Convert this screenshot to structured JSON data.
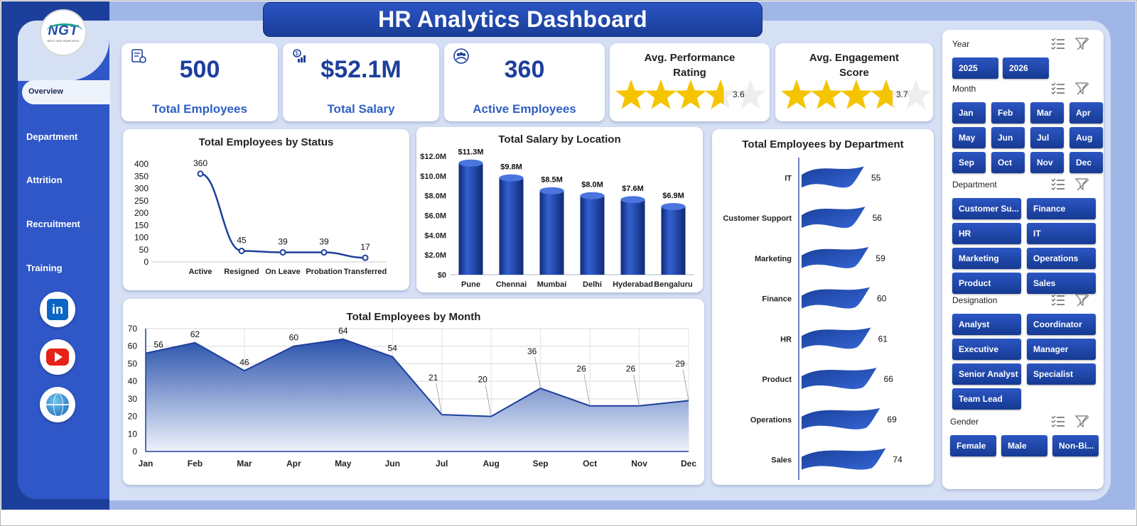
{
  "header": {
    "title": "HR Analytics Dashboard"
  },
  "logo": {
    "text": "NGT",
    "subtext": "NEXT GEN TEMPLATES"
  },
  "sidebar": {
    "items": [
      {
        "label": "Overview",
        "active": true
      },
      {
        "label": "Department"
      },
      {
        "label": "Attrition"
      },
      {
        "label": "Recruitment"
      },
      {
        "label": "Training"
      }
    ],
    "social": [
      {
        "icon": "linkedin-icon",
        "glyph": "in"
      },
      {
        "icon": "youtube-icon"
      },
      {
        "icon": "globe-icon"
      }
    ]
  },
  "kpis": [
    {
      "value": "500",
      "label": "Total Employees",
      "icon": "employees-icon"
    },
    {
      "value": "$52.1M",
      "label": "Total Salary",
      "icon": "salary-icon"
    },
    {
      "value": "360",
      "label": "Active Employees",
      "icon": "active-icon"
    }
  ],
  "ratings": [
    {
      "title": "Avg. Performance Rating",
      "value": "3.6",
      "stars": 3.6,
      "max": 5
    },
    {
      "title": "Avg. Engagement Score",
      "value": "3.7",
      "stars": 3.7,
      "max": 5
    }
  ],
  "colors": {
    "primary": "#1d3f9c",
    "accent": "#2f57c7",
    "star": "#f5c400",
    "star_empty": "#eeeeee",
    "panel": "#d6e0f5"
  },
  "chart_data": [
    {
      "type": "line",
      "title": "Total Employees by Status",
      "categories": [
        "Active",
        "Resigned",
        "On Leave",
        "Probation",
        "Transferred"
      ],
      "values": [
        360,
        45,
        39,
        39,
        17
      ],
      "ylim": [
        0,
        400
      ],
      "yticks": [
        "0",
        "50",
        "100",
        "150",
        "200",
        "250",
        "300",
        "350",
        "400"
      ]
    },
    {
      "type": "bar",
      "title": "Total Salary by Location",
      "categories": [
        "Pune",
        "Chennai",
        "Mumbai",
        "Delhi",
        "Hyderabad",
        "Bengaluru"
      ],
      "values": [
        11.3,
        9.8,
        8.5,
        8.0,
        7.6,
        6.9
      ],
      "data_labels": [
        "$11.3M",
        "$9.8M",
        "$8.5M",
        "$8.0M",
        "$7.6M",
        "$6.9M"
      ],
      "ylim": [
        0,
        12
      ],
      "yticks": [
        "$0",
        "$2.0M",
        "$4.0M",
        "$6.0M",
        "$8.0M",
        "$10.0M",
        "$12.0M"
      ]
    },
    {
      "type": "bar",
      "title": "Total Employees by Department",
      "orientation": "horizontal",
      "categories": [
        "IT",
        "Customer Support",
        "Marketing",
        "Finance",
        "HR",
        "Product",
        "Operations",
        "Sales"
      ],
      "values": [
        55,
        56,
        59,
        60,
        61,
        66,
        69,
        74
      ]
    },
    {
      "type": "area",
      "title": "Total Employees by Month",
      "categories": [
        "Jan",
        "Feb",
        "Mar",
        "Apr",
        "May",
        "Jun",
        "Jul",
        "Aug",
        "Sep",
        "Oct",
        "Nov",
        "Dec"
      ],
      "values": [
        56,
        62,
        46,
        60,
        64,
        54,
        21,
        20,
        36,
        26,
        26,
        29
      ],
      "ylim": [
        0,
        70
      ],
      "yticks": [
        "0",
        "10",
        "20",
        "30",
        "40",
        "50",
        "60",
        "70"
      ],
      "grid": true
    }
  ],
  "slicers": [
    {
      "title": "Year",
      "items": [
        "2025",
        "2026"
      ]
    },
    {
      "title": "Month",
      "items": [
        "Jan",
        "Feb",
        "Mar",
        "Apr",
        "May",
        "Jun",
        "Jul",
        "Aug",
        "Sep",
        "Oct",
        "Nov",
        "Dec"
      ]
    },
    {
      "title": "Department",
      "items": [
        "Customer Su...",
        "Finance",
        "HR",
        "IT",
        "Marketing",
        "Operations",
        "Product",
        "Sales"
      ]
    },
    {
      "title": "Designation",
      "items": [
        "Analyst",
        "Coordinator",
        "Executive",
        "Manager",
        "Senior Analyst",
        "Specialist",
        "Team Lead"
      ]
    },
    {
      "title": "Gender",
      "items": [
        "Female",
        "Male",
        "Non-Bi..."
      ]
    }
  ]
}
